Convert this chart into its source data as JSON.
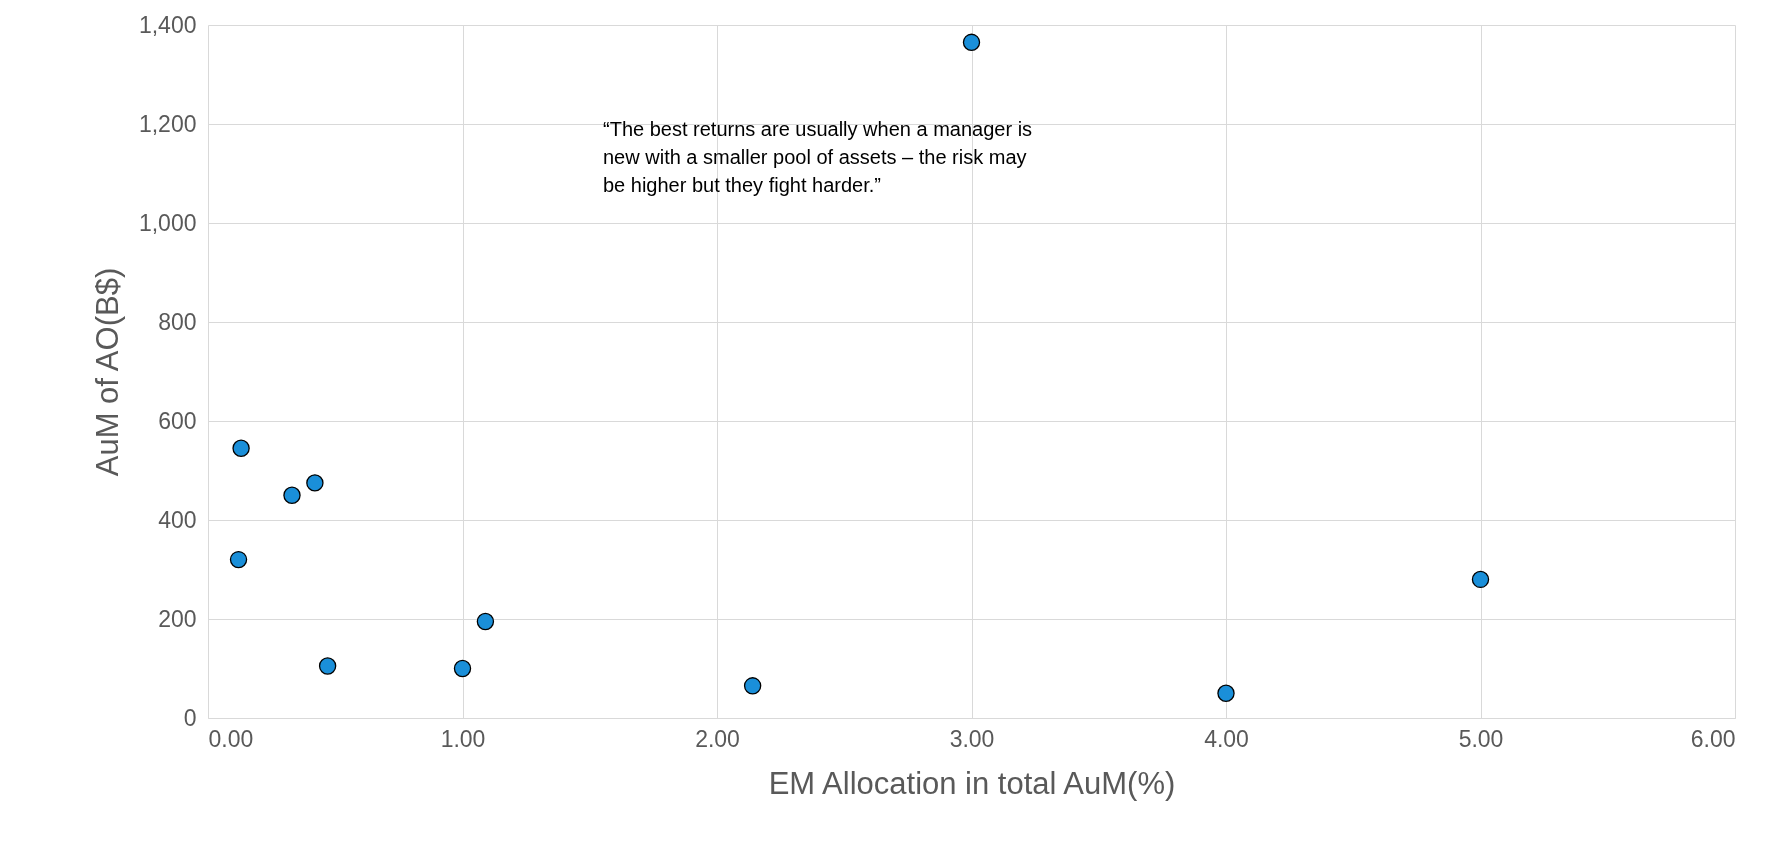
{
  "chart_data": {
    "type": "scatter",
    "xlabel": "EM Allocation in total AuM(%)",
    "ylabel": "AuM of AO(B$)",
    "x": [
      0.13,
      0.12,
      0.33,
      0.42,
      0.47,
      1.0,
      1.09,
      2.14,
      3.0,
      4.0,
      5.0
    ],
    "series": [
      {
        "color": "#1a8fd9",
        "values": [
          545,
          320,
          450,
          475,
          105,
          100,
          195,
          65,
          1365,
          50,
          280
        ]
      }
    ],
    "xlim": [
      0,
      6
    ],
    "xticks": [
      {
        "value": 0,
        "label": "0.00"
      },
      {
        "value": 1,
        "label": "1.00"
      },
      {
        "value": 2,
        "label": "2.00"
      },
      {
        "value": 3,
        "label": "3.00"
      },
      {
        "value": 4,
        "label": "4.00"
      },
      {
        "value": 5,
        "label": "5.00"
      },
      {
        "value": 6,
        "label": "6.00"
      }
    ],
    "ylim": [
      0,
      1400
    ],
    "yticks": [
      0,
      {
        "value": 200,
        "label": "200"
      },
      {
        "value": 400,
        "label": "400"
      },
      {
        "value": 600,
        "label": "600"
      },
      {
        "value": 800,
        "label": "800"
      },
      {
        "value": 1000,
        "label": "1,000"
      },
      {
        "value": 1200,
        "label": "1,200"
      },
      {
        "value": 1400,
        "label": "1,400"
      }
    ],
    "grid": true,
    "marker": "circle",
    "annotations": [
      "“The best returns are usually when a manager is new with a smaller pool of assets – the risk may be higher but they fight harder.”"
    ]
  }
}
